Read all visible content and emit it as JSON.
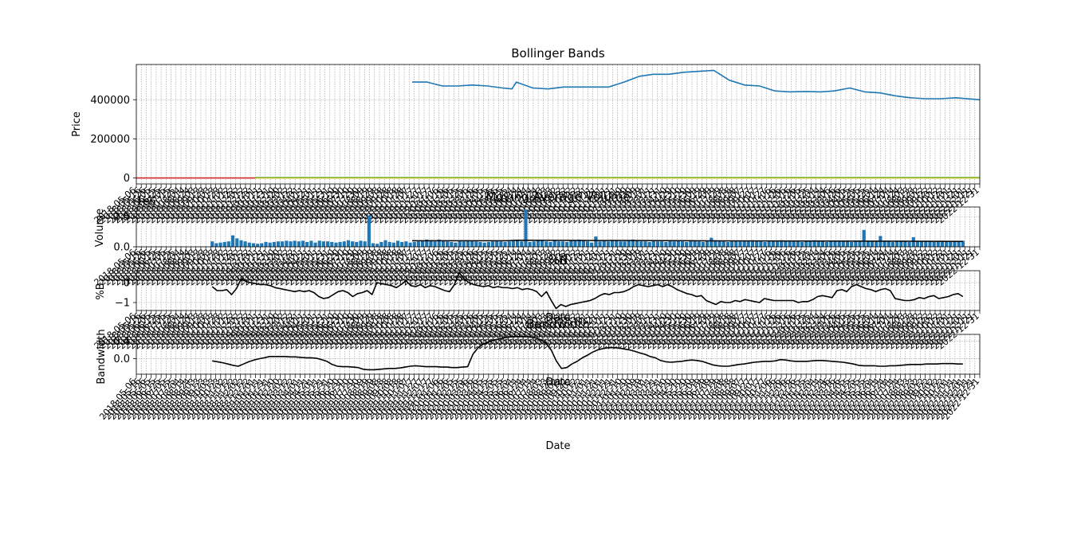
{
  "figure": {
    "date_start": "2018-05-06",
    "date_end": "2022-12-31",
    "x_axis_label": "Date"
  },
  "chart_data": [
    {
      "type": "line",
      "title": "Bollinger Bands",
      "xlabel": "",
      "ylabel": "Price",
      "ylim": [
        -30000,
        580000
      ],
      "yticks": [
        0,
        200000,
        400000
      ],
      "ytick_labels": [
        "0",
        "200000",
        "400000"
      ],
      "grid": true,
      "series": [
        {
          "color": "#1f77b4",
          "x": [
            "2019-11-13",
            "2019-12-13",
            "2020-01-13",
            "2020-02-13",
            "2020-03-13",
            "2020-04-13",
            "2020-05-13",
            "2020-06-01",
            "2020-06-10",
            "2020-07-13",
            "2020-08-13",
            "2020-09-13",
            "2020-10-13",
            "2020-11-13",
            "2020-12-13",
            "2021-01-13",
            "2021-02-13",
            "2021-03-13",
            "2021-04-13",
            "2021-05-13",
            "2021-06-13",
            "2021-07-13",
            "2021-08-13",
            "2021-09-13",
            "2021-10-13",
            "2021-11-13",
            "2021-12-13",
            "2022-01-13",
            "2022-02-13",
            "2022-03-13",
            "2022-04-13",
            "2022-05-13",
            "2022-06-13",
            "2022-07-13",
            "2022-08-13",
            "2022-09-13",
            "2022-10-13",
            "2022-11-13",
            "2022-12-31"
          ],
          "y": [
            490000,
            490000,
            470000,
            470000,
            475000,
            470000,
            460000,
            455000,
            490000,
            460000,
            455000,
            465000,
            465000,
            465000,
            465000,
            490000,
            520000,
            530000,
            530000,
            540000,
            545000,
            550000,
            500000,
            475000,
            470000,
            445000,
            440000,
            442000,
            440000,
            445000,
            460000,
            440000,
            435000,
            420000,
            410000,
            405000,
            405000,
            410000,
            400000
          ]
        },
        {
          "color": "#d62728",
          "x": [
            "2018-05-06",
            "2019-01-01"
          ],
          "y": [
            0,
            0
          ]
        },
        {
          "color": "#2ca02c",
          "x": [
            "2019-01-01",
            "2022-12-31"
          ],
          "y": [
            2000,
            2000
          ]
        },
        {
          "color": "#bcbd22",
          "x": [
            "2019-01-01",
            "2022-12-31"
          ],
          "y": [
            0,
            0
          ]
        }
      ]
    },
    {
      "type": "bar",
      "title": "Moving Average Volume",
      "xlabel": "",
      "ylabel": "Volume",
      "ylim": [
        0,
        3.3
      ],
      "yticks": [
        0,
        2.5
      ],
      "ytick_labels": [
        "0.0",
        "2.5"
      ],
      "y_offset_label": "1e6",
      "grid": true,
      "bar_color": "#1f77b4",
      "x_start": "2018-10-06",
      "x_end": "2022-11-27",
      "values": [
        0.45,
        0.3,
        0.35,
        0.4,
        0.45,
        0.95,
        0.7,
        0.55,
        0.45,
        0.35,
        0.3,
        0.25,
        0.3,
        0.4,
        0.35,
        0.4,
        0.45,
        0.45,
        0.5,
        0.45,
        0.5,
        0.45,
        0.5,
        0.4,
        0.5,
        0.35,
        0.5,
        0.45,
        0.45,
        0.4,
        0.35,
        0.4,
        0.45,
        0.55,
        0.45,
        0.4,
        0.5,
        0.45,
        0.4,
        0.3,
        0.25,
        0.4,
        0.55,
        0.4,
        0.35,
        0.5,
        0.4,
        0.45,
        0.35,
        0.4,
        0.45,
        0.5,
        0.6,
        0.55,
        0.45,
        0.6,
        0.5,
        0.45,
        0.4,
        0.35,
        0.5,
        0.45,
        0.55,
        0.5,
        0.45,
        0.4,
        0.35,
        0.4,
        0.45,
        0.5,
        0.45,
        0.4,
        0.45,
        0.5,
        0.55,
        0.45,
        0.5,
        0.4,
        0.45,
        0.55,
        0.5,
        0.45,
        0.4,
        0.5,
        0.45,
        0.45,
        0.4,
        0.5,
        0.55,
        0.6,
        0.5,
        0.45,
        0.35,
        0.4,
        0.45,
        0.5,
        0.45,
        0.55,
        0.5,
        0.45,
        0.45,
        0.5,
        0.6,
        0.5,
        0.45,
        0.45,
        0.4,
        0.5,
        0.45,
        0.45,
        0.4,
        0.5,
        0.45,
        0.5,
        0.45,
        0.4,
        0.55,
        0.5,
        0.45,
        0.4,
        0.5,
        0.45,
        0.55,
        0.5,
        0.45,
        0.4,
        0.45,
        0.5,
        0.45,
        0.5,
        0.45,
        0.55,
        0.5,
        0.45,
        0.4,
        0.45,
        0.5,
        0.45,
        0.55,
        0.5,
        0.45,
        0.5,
        0.45,
        0.4,
        0.45,
        0.5,
        0.55,
        0.5,
        0.45,
        0.4,
        0.45,
        0.5,
        0.45,
        0.45,
        0.5,
        0.4,
        0.45,
        0.5,
        0.45,
        0.45,
        0.5,
        0.45,
        0.9,
        0.5,
        0.45,
        0.4,
        0.45,
        0.5,
        0.45,
        0.4,
        0.45,
        0.5,
        0.45,
        0.5,
        0.45,
        0.4,
        0.45,
        0.5,
        0.45,
        0.4,
        0.4,
        0.45,
        0.5
      ],
      "overrides": {
        "38": 2.6,
        "76": 3.1,
        "93": 0.85,
        "121": 0.75,
        "158": 1.4,
        "170": 0.8,
        "185": 0.9
      },
      "ma_line": {
        "color": "#000000",
        "x": [
          "2019-11-13",
          "2020-05-20",
          "2020-06-10",
          "2021-06-01",
          "2022-11-27"
        ],
        "y": [
          0.5,
          0.5,
          0.55,
          0.5,
          0.45
        ]
      }
    },
    {
      "type": "line",
      "title": "%B",
      "xlabel": "Date",
      "ylabel": "%B",
      "ylim": [
        -1.4,
        0.6
      ],
      "yticks": [
        0,
        -1
      ],
      "ytick_labels": [
        "0",
        "−1"
      ],
      "grid": true,
      "series": [
        {
          "color": "#000000",
          "x_start": "2018-10-06",
          "x_end": "2022-11-27",
          "y": [
            -0.2,
            -0.4,
            -0.4,
            -0.35,
            -0.6,
            -0.3,
            0.2,
            0.05,
            0.0,
            -0.05,
            -0.1,
            -0.1,
            -0.15,
            -0.25,
            -0.3,
            -0.35,
            -0.4,
            -0.45,
            -0.4,
            -0.45,
            -0.4,
            -0.5,
            -0.7,
            -0.8,
            -0.75,
            -0.6,
            -0.45,
            -0.4,
            -0.5,
            -0.7,
            -0.55,
            -0.5,
            -0.4,
            -0.6,
            0.0,
            -0.05,
            -0.1,
            -0.15,
            -0.25,
            -0.1,
            0.1,
            -0.15,
            -0.2,
            -0.1,
            -0.25,
            -0.15,
            -0.2,
            -0.3,
            -0.4,
            -0.45,
            -0.1,
            0.5,
            0.2,
            0.0,
            -0.1,
            -0.15,
            -0.2,
            -0.15,
            -0.25,
            -0.2,
            -0.25,
            -0.25,
            -0.3,
            -0.25,
            -0.35,
            -0.3,
            -0.35,
            -0.45,
            -0.7,
            -0.45,
            -0.9,
            -1.3,
            -1.1,
            -1.2,
            -1.1,
            -1.05,
            -1.0,
            -0.95,
            -0.9,
            -0.8,
            -0.65,
            -0.55,
            -0.6,
            -0.5,
            -0.5,
            -0.45,
            -0.35,
            -0.2,
            -0.1,
            -0.15,
            -0.2,
            -0.15,
            -0.1,
            -0.2,
            -0.1,
            -0.2,
            -0.35,
            -0.45,
            -0.55,
            -0.6,
            -0.7,
            -0.65,
            -0.9,
            -1.0,
            -1.1,
            -0.95,
            -1.0,
            -1.0,
            -0.9,
            -0.95,
            -0.85,
            -0.9,
            -0.95,
            -1.0,
            -0.8,
            -0.85,
            -0.9,
            -0.9,
            -0.9,
            -0.9,
            -0.9,
            -1.0,
            -0.95,
            -0.95,
            -0.85,
            -0.7,
            -0.65,
            -0.7,
            -0.75,
            -0.4,
            -0.35,
            -0.45,
            -0.2,
            -0.1,
            -0.2,
            -0.3,
            -0.35,
            -0.45,
            -0.35,
            -0.3,
            -0.4,
            -0.8,
            -0.85,
            -0.9,
            -0.9,
            -0.85,
            -0.75,
            -0.8,
            -0.7,
            -0.65,
            -0.8,
            -0.75,
            -0.7,
            -0.6,
            -0.55,
            -0.7
          ]
        }
      ]
    },
    {
      "type": "line",
      "title": "Bandwidth",
      "xlabel": "Date",
      "ylabel": "Bandwidth",
      "ylim": [
        -0.35,
        0.55
      ],
      "yticks": [
        0.4,
        0.0
      ],
      "ytick_labels": [
        "0.4",
        "0.0"
      ],
      "grid": true,
      "series": [
        {
          "color": "#000000",
          "x_start": "2018-10-06",
          "x_end": "2022-11-27",
          "y": [
            -0.05,
            -0.07,
            -0.09,
            -0.12,
            -0.15,
            -0.17,
            -0.12,
            -0.07,
            -0.03,
            0.0,
            0.02,
            0.05,
            0.05,
            0.05,
            0.05,
            0.04,
            0.04,
            0.03,
            0.02,
            0.02,
            0.01,
            -0.02,
            -0.06,
            -0.13,
            -0.17,
            -0.18,
            -0.18,
            -0.19,
            -0.2,
            -0.24,
            -0.25,
            -0.25,
            -0.24,
            -0.23,
            -0.22,
            -0.22,
            -0.21,
            -0.19,
            -0.17,
            -0.16,
            -0.17,
            -0.18,
            -0.18,
            -0.18,
            -0.19,
            -0.19,
            -0.2,
            -0.2,
            -0.19,
            -0.18,
            0.1,
            0.25,
            0.33,
            0.38,
            0.42,
            0.45,
            0.47,
            0.49,
            0.5,
            0.5,
            0.5,
            0.49,
            0.47,
            0.43,
            0.35,
            0.2,
            -0.05,
            -0.22,
            -0.2,
            -0.12,
            -0.06,
            0.02,
            0.08,
            0.15,
            0.2,
            0.23,
            0.25,
            0.25,
            0.24,
            0.22,
            0.2,
            0.17,
            0.13,
            0.1,
            0.05,
            0.02,
            -0.04,
            -0.07,
            -0.08,
            -0.07,
            -0.06,
            -0.04,
            -0.03,
            -0.04,
            -0.06,
            -0.1,
            -0.14,
            -0.16,
            -0.17,
            -0.17,
            -0.15,
            -0.13,
            -0.12,
            -0.1,
            -0.08,
            -0.07,
            -0.06,
            -0.06,
            -0.05,
            -0.02,
            -0.03,
            -0.05,
            -0.06,
            -0.06,
            -0.06,
            -0.05,
            -0.04,
            -0.04,
            -0.05,
            -0.06,
            -0.07,
            -0.08,
            -0.1,
            -0.12,
            -0.15,
            -0.16,
            -0.16,
            -0.16,
            -0.17,
            -0.17,
            -0.16,
            -0.16,
            -0.15,
            -0.14,
            -0.13,
            -0.13,
            -0.13,
            -0.12,
            -0.12,
            -0.12,
            -0.11,
            -0.11,
            -0.11,
            -0.12,
            -0.12
          ]
        }
      ]
    }
  ]
}
